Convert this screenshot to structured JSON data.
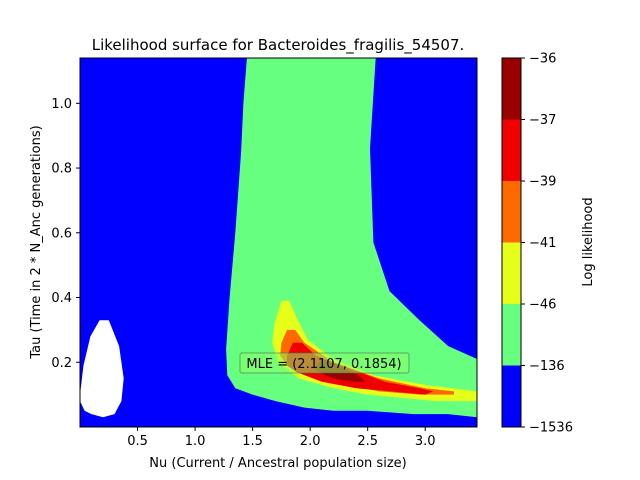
{
  "chart_data": {
    "type": "heatmap",
    "subtype": "filled-contour",
    "title": "Likelihood surface for Bacteroides_fragilis_54507.",
    "xlabel": "Nu (Current / Ancestral population size)",
    "ylabel": "Tau (Time in 2 * N_Anc generations)",
    "xlim": [
      0.0,
      3.45
    ],
    "ylim": [
      0.0,
      1.14
    ],
    "xticks": [
      0.5,
      1.0,
      1.5,
      2.0,
      2.5,
      3.0
    ],
    "xtick_labels": [
      "0.5",
      "1.0",
      "1.5",
      "2.0",
      "2.5",
      "3.0"
    ],
    "yticks": [
      0.2,
      0.4,
      0.6,
      0.8,
      1.0
    ],
    "ytick_labels": [
      "0.2",
      "0.4",
      "0.6",
      "0.8",
      "1.0"
    ],
    "mle": {
      "x": 2.1107,
      "y": 0.1854
    },
    "mle_label": "MLE = (2.1107, 0.1854)",
    "colorbar": {
      "label": "Log likelihood",
      "levels": [
        -1536,
        -136,
        -46,
        -41,
        -39,
        -37,
        -36
      ],
      "tick_labels": [
        "−1536",
        "−136",
        "−46",
        "−41",
        "−39",
        "−37",
        "−36"
      ],
      "colors": [
        "#0000ff",
        "#66ff80",
        "#e6ff1a",
        "#ff6a00",
        "#f00000",
        "#990000"
      ]
    },
    "regions": [
      {
        "name": "undefined-region",
        "color": "#ffffff",
        "points": [
          [
            0.0,
            0.1
          ],
          [
            0.03,
            0.19
          ],
          [
            0.09,
            0.28
          ],
          [
            0.17,
            0.33
          ],
          [
            0.25,
            0.33
          ],
          [
            0.34,
            0.25
          ],
          [
            0.38,
            0.15
          ],
          [
            0.36,
            0.08
          ],
          [
            0.3,
            0.04
          ],
          [
            0.2,
            0.03
          ],
          [
            0.1,
            0.04
          ],
          [
            0.04,
            0.05
          ],
          [
            0.0,
            0.08
          ]
        ]
      },
      {
        "name": "level-136-to-46",
        "color": "#66ff80",
        "points": [
          [
            1.45,
            1.14
          ],
          [
            2.57,
            1.14
          ],
          [
            2.52,
            0.86
          ],
          [
            2.55,
            0.57
          ],
          [
            2.69,
            0.42
          ],
          [
            2.95,
            0.33
          ],
          [
            3.2,
            0.25
          ],
          [
            3.45,
            0.21
          ],
          [
            3.45,
            0.03
          ],
          [
            3.2,
            0.04
          ],
          [
            2.9,
            0.04
          ],
          [
            2.5,
            0.05
          ],
          [
            2.2,
            0.05
          ],
          [
            1.95,
            0.06
          ],
          [
            1.7,
            0.08
          ],
          [
            1.5,
            0.1
          ],
          [
            1.35,
            0.12
          ],
          [
            1.28,
            0.16
          ],
          [
            1.27,
            0.24
          ],
          [
            1.3,
            0.4
          ],
          [
            1.35,
            0.6
          ],
          [
            1.4,
            0.85
          ],
          [
            1.42,
            1.0
          ]
        ]
      },
      {
        "name": "level-46-to-41",
        "color": "#e6ff1a",
        "points": [
          [
            1.69,
            0.32
          ],
          [
            1.75,
            0.39
          ],
          [
            1.82,
            0.39
          ],
          [
            1.88,
            0.34
          ],
          [
            1.98,
            0.27
          ],
          [
            2.2,
            0.21
          ],
          [
            2.55,
            0.16
          ],
          [
            3.0,
            0.13
          ],
          [
            3.45,
            0.11
          ],
          [
            3.45,
            0.08
          ],
          [
            3.1,
            0.08
          ],
          [
            2.8,
            0.09
          ],
          [
            2.5,
            0.1
          ],
          [
            2.2,
            0.12
          ],
          [
            1.9,
            0.15
          ],
          [
            1.72,
            0.2
          ],
          [
            1.67,
            0.26
          ]
        ]
      },
      {
        "name": "level-41-to-39",
        "color": "#ff6a00",
        "points": [
          [
            1.75,
            0.26
          ],
          [
            1.8,
            0.3
          ],
          [
            1.87,
            0.3
          ],
          [
            1.95,
            0.26
          ],
          [
            2.2,
            0.2
          ],
          [
            2.6,
            0.15
          ],
          [
            3.0,
            0.12
          ],
          [
            3.25,
            0.11
          ],
          [
            3.25,
            0.1
          ],
          [
            2.95,
            0.1
          ],
          [
            2.6,
            0.11
          ],
          [
            2.3,
            0.13
          ],
          [
            1.98,
            0.16
          ],
          [
            1.8,
            0.19
          ],
          [
            1.74,
            0.22
          ]
        ]
      },
      {
        "name": "level-39-to-37",
        "color": "#f00000",
        "points": [
          [
            1.8,
            0.22
          ],
          [
            1.85,
            0.26
          ],
          [
            1.93,
            0.26
          ],
          [
            2.05,
            0.22
          ],
          [
            2.35,
            0.18
          ],
          [
            2.65,
            0.14
          ],
          [
            2.95,
            0.12
          ],
          [
            3.07,
            0.11
          ],
          [
            3.0,
            0.1
          ],
          [
            2.7,
            0.11
          ],
          [
            2.4,
            0.12
          ],
          [
            2.1,
            0.14
          ],
          [
            1.88,
            0.17
          ],
          [
            1.8,
            0.19
          ]
        ]
      },
      {
        "name": "level-37-to-36",
        "color": "#990000",
        "points": [
          [
            2.04,
            0.18
          ],
          [
            2.1,
            0.21
          ],
          [
            2.25,
            0.19
          ],
          [
            2.42,
            0.16
          ],
          [
            2.48,
            0.14
          ],
          [
            2.36,
            0.14
          ],
          [
            2.2,
            0.15
          ],
          [
            2.07,
            0.17
          ]
        ]
      }
    ]
  }
}
